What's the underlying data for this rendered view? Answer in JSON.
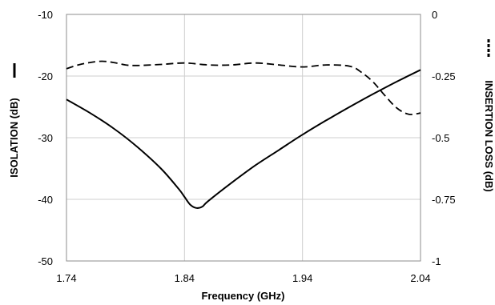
{
  "chart_data": {
    "type": "line",
    "title": "",
    "xlabel": "Frequency (GHz)",
    "ylabel_left": "ISOLATION (dB)",
    "ylabel_right": "INSERTION LOSS (dB)",
    "xlim": [
      1.74,
      2.04
    ],
    "ylim_left": [
      -50,
      -10
    ],
    "ylim_right": [
      -1,
      0
    ],
    "x_ticks": [
      1.74,
      1.84,
      1.94,
      2.04
    ],
    "x_tick_labels": [
      "1.74",
      "1.84",
      "1.94",
      "2.04"
    ],
    "y_left_ticks": [
      -50,
      -40,
      -30,
      -20,
      -10
    ],
    "y_left_tick_labels": [
      "-50",
      "-40",
      "-30",
      "-20",
      "-10"
    ],
    "y_right_ticks": [
      -1,
      -0.75,
      -0.5,
      -0.25,
      0
    ],
    "y_right_tick_labels": [
      "-1",
      "-0.75",
      "-0.5",
      "-0.25",
      "0"
    ],
    "grid": true,
    "series": [
      {
        "axis": "left",
        "style": "solid",
        "color": "#000000",
        "x": [
          1.74,
          1.76,
          1.78,
          1.8,
          1.82,
          1.835,
          1.84,
          1.845,
          1.85,
          1.855,
          1.86,
          1.88,
          1.9,
          1.92,
          1.94,
          1.96,
          1.98,
          2.0,
          2.02,
          2.04
        ],
        "y": [
          -23.8,
          -26.0,
          -28.5,
          -31.5,
          -35.0,
          -38.3,
          -39.6,
          -40.9,
          -41.4,
          -41.2,
          -40.3,
          -37.3,
          -34.5,
          -32.0,
          -29.5,
          -27.2,
          -25.0,
          -22.9,
          -20.9,
          -19.0
        ]
      },
      {
        "axis": "right",
        "style": "dashed",
        "color": "#000000",
        "x": [
          1.74,
          1.75,
          1.76,
          1.77,
          1.78,
          1.79,
          1.8,
          1.82,
          1.84,
          1.86,
          1.88,
          1.9,
          1.92,
          1.94,
          1.96,
          1.98,
          1.99,
          2.0,
          2.01,
          2.02,
          2.03,
          2.04
        ],
        "y": [
          -0.22,
          -0.205,
          -0.195,
          -0.19,
          -0.195,
          -0.205,
          -0.207,
          -0.203,
          -0.197,
          -0.205,
          -0.205,
          -0.197,
          -0.205,
          -0.213,
          -0.205,
          -0.21,
          -0.235,
          -0.275,
          -0.33,
          -0.38,
          -0.405,
          -0.4
        ]
      }
    ]
  },
  "legend": {
    "left_marker": "solid-line-marker",
    "right_marker": "dashed-line-marker"
  }
}
